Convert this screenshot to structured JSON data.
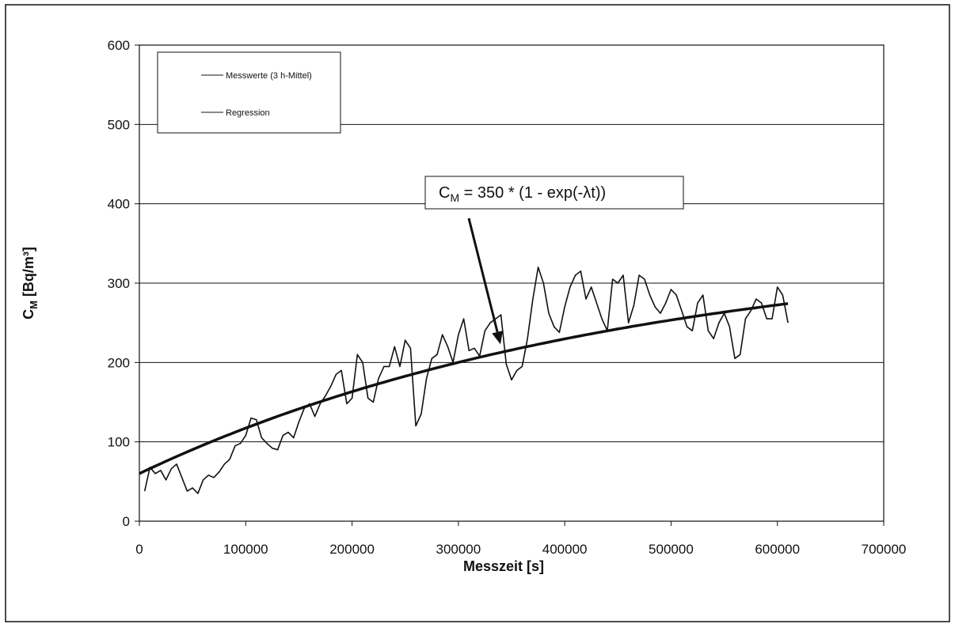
{
  "chart_data": {
    "type": "line",
    "title": "",
    "xlabel": "Messzeit [s]",
    "ylabel": "C<sub>M</sub> [Bq/m³]",
    "ylabel_parts": {
      "main": "C",
      "sub": "M",
      "rest": " [Bq/m³]"
    },
    "xlim": [
      0,
      700000
    ],
    "ylim": [
      0,
      600
    ],
    "xticks": [
      0,
      100000,
      200000,
      300000,
      400000,
      500000,
      600000,
      700000
    ],
    "xtick_labels": [
      "0",
      "100000",
      "200000",
      "300000",
      "400000",
      "500000",
      "600000",
      "700000"
    ],
    "yticks": [
      0,
      100,
      200,
      300,
      400,
      500,
      600
    ],
    "ytick_labels": [
      "0",
      "100",
      "200",
      "300",
      "400",
      "500",
      "600"
    ],
    "grid": {
      "horizontal": true,
      "vertical": false
    },
    "legend": {
      "placement": "top-left"
    },
    "annotation": {
      "parts": {
        "main": "C",
        "sub": "M",
        "rest": " = 350 * (1 - exp(-λt))"
      },
      "arrow_target": {
        "x": 350000,
        "y": 207
      }
    },
    "series": [
      {
        "name": "Messwerte (3 h-Mittel)",
        "style": "thin",
        "x": [
          5000,
          10000,
          15000,
          20000,
          25000,
          30000,
          35000,
          40000,
          45000,
          50000,
          55000,
          60000,
          65000,
          70000,
          75000,
          80000,
          85000,
          90000,
          95000,
          100000,
          105000,
          110000,
          115000,
          120000,
          125000,
          130000,
          135000,
          140000,
          145000,
          150000,
          155000,
          160000,
          165000,
          170000,
          175000,
          180000,
          185000,
          190000,
          195000,
          200000,
          205000,
          210000,
          215000,
          220000,
          225000,
          230000,
          235000,
          240000,
          245000,
          250000,
          255000,
          260000,
          265000,
          270000,
          275000,
          280000,
          285000,
          290000,
          295000,
          300000,
          305000,
          310000,
          315000,
          320000,
          325000,
          330000,
          335000,
          340000,
          345000,
          350000,
          355000,
          360000,
          365000,
          370000,
          375000,
          380000,
          385000,
          390000,
          395000,
          400000,
          405000,
          410000,
          415000,
          420000,
          425000,
          430000,
          435000,
          440000,
          445000,
          450000,
          455000,
          460000,
          465000,
          470000,
          475000,
          480000,
          485000,
          490000,
          495000,
          500000,
          505000,
          510000,
          515000,
          520000,
          525000,
          530000,
          535000,
          540000,
          545000,
          550000,
          555000,
          560000,
          565000,
          570000,
          575000,
          580000,
          585000,
          590000,
          595000,
          600000,
          605000,
          610000
        ],
        "y": [
          38,
          68,
          60,
          64,
          52,
          66,
          72,
          55,
          38,
          42,
          35,
          52,
          58,
          55,
          62,
          72,
          78,
          95,
          98,
          108,
          130,
          128,
          105,
          98,
          92,
          90,
          108,
          112,
          105,
          125,
          142,
          148,
          132,
          148,
          158,
          170,
          185,
          190,
          148,
          155,
          210,
          200,
          155,
          150,
          180,
          195,
          195,
          220,
          195,
          228,
          218,
          120,
          135,
          180,
          205,
          210,
          235,
          220,
          200,
          235,
          255,
          215,
          218,
          208,
          240,
          250,
          255,
          260,
          198,
          178,
          190,
          195,
          230,
          280,
          320,
          300,
          262,
          245,
          238,
          270,
          295,
          310,
          315,
          280,
          295,
          275,
          255,
          240,
          305,
          300,
          310,
          250,
          272,
          310,
          305,
          285,
          270,
          262,
          275,
          292,
          285,
          265,
          245,
          240,
          275,
          285,
          240,
          230,
          250,
          262,
          245,
          205,
          210,
          255,
          265,
          280,
          275,
          255,
          255,
          295,
          285,
          250
        ]
      },
      {
        "name": "Regression",
        "style": "thick",
        "model": {
          "a": 350,
          "lambda": 2.2e-06,
          "offset": 0
        },
        "x_range": [
          0,
          610000
        ]
      }
    ]
  }
}
